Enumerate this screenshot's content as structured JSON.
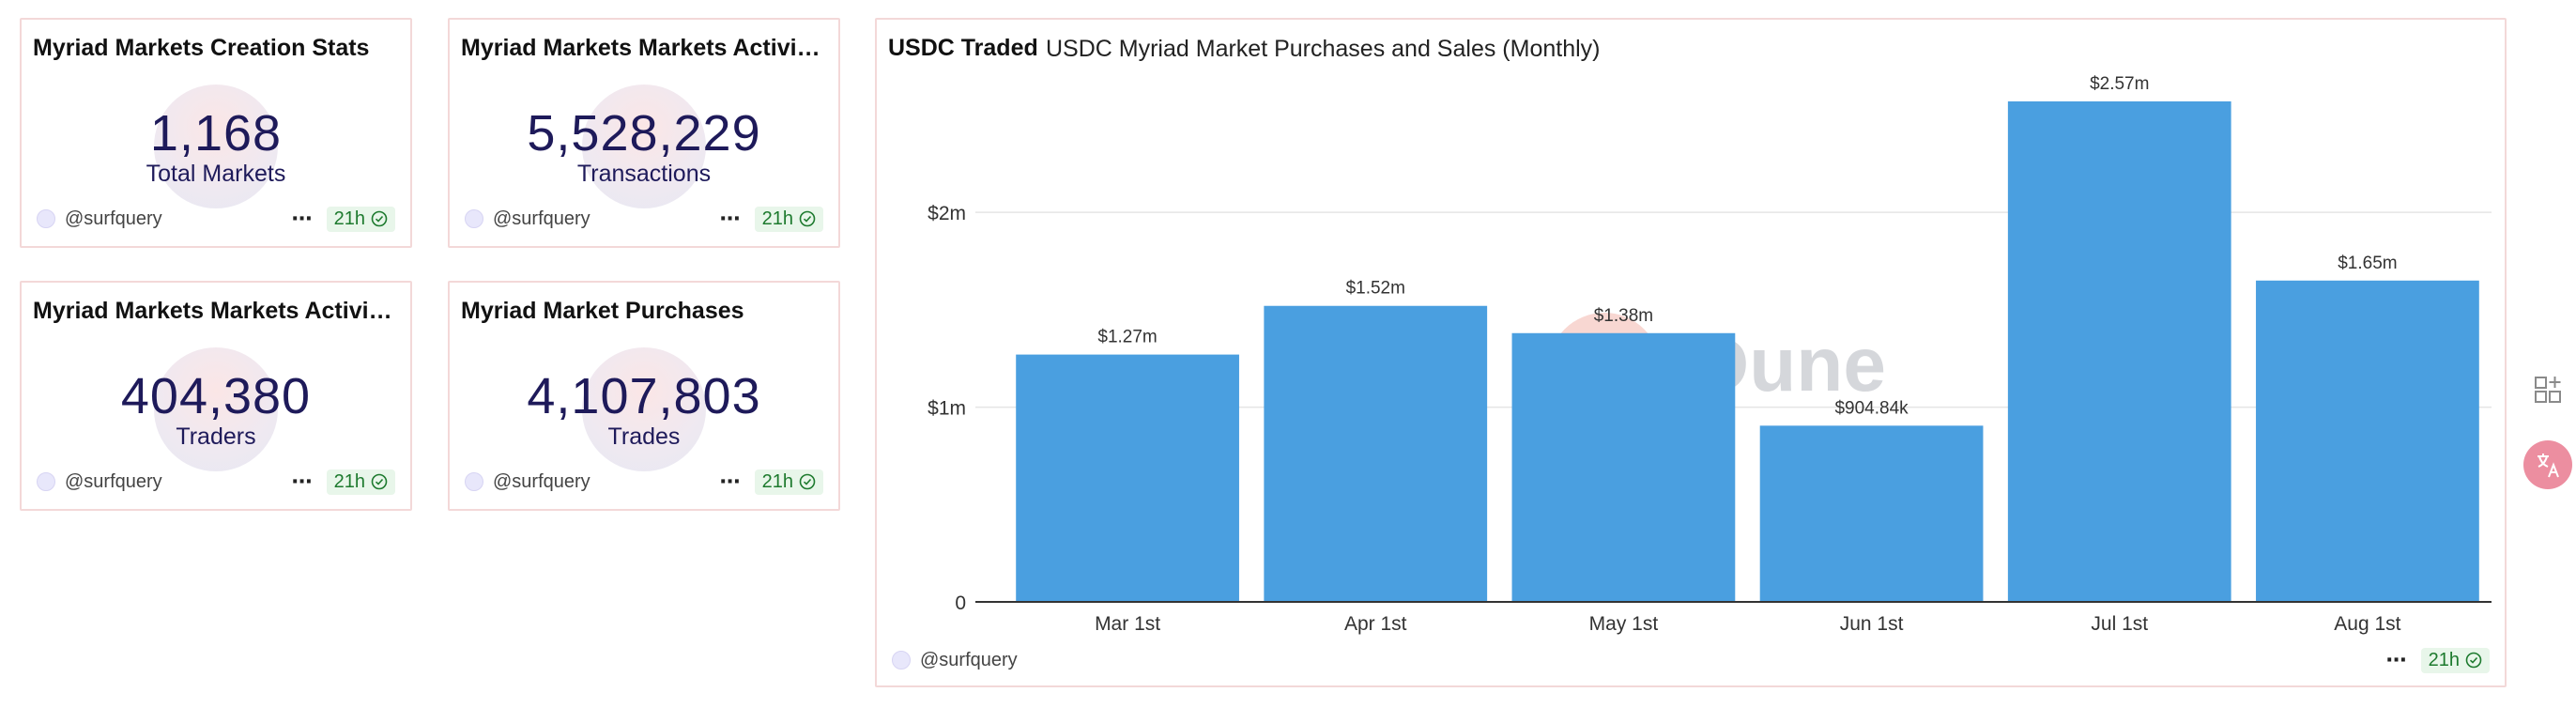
{
  "counters": [
    {
      "title": "Myriad Markets Creation Stats",
      "value": "1,168",
      "label": "Total Markets",
      "author": "@surfquery",
      "freshness": "21h"
    },
    {
      "title": "Myriad Markets Markets Activity...",
      "value": "5,528,229",
      "label": "Transactions",
      "author": "@surfquery",
      "freshness": "21h"
    },
    {
      "title": "Myriad Markets Markets Activity...",
      "value": "404,380",
      "label": "Traders",
      "author": "@surfquery",
      "freshness": "21h"
    },
    {
      "title": "Myriad Market Purchases",
      "value": "4,107,803",
      "label": "Trades",
      "author": "@surfquery",
      "freshness": "21h"
    }
  ],
  "chart_panel": {
    "tab_label": "USDC Traded",
    "title": "USDC Myriad Market Purchases and Sales (Monthly)",
    "author": "@surfquery",
    "freshness": "21h",
    "watermark": "Dune"
  },
  "chart_data": {
    "type": "bar",
    "title": "USDC Myriad Market Purchases and Sales (Monthly)",
    "categories": [
      "Mar 1st",
      "Apr 1st",
      "May 1st",
      "Jun 1st",
      "Jul 1st",
      "Aug 1st"
    ],
    "values": [
      1270000,
      1520000,
      1380000,
      904840,
      2570000,
      1650000
    ],
    "data_labels": [
      "$1.27m",
      "$1.52m",
      "$1.38m",
      "$904.84k",
      "$2.57m",
      "$1.65m"
    ],
    "y_ticks": [
      0,
      1000000,
      2000000
    ],
    "y_tick_labels": [
      "0",
      "$1m",
      "$2m"
    ],
    "ylim": [
      0,
      2700000
    ],
    "grid": true,
    "bar_color": "#4a9fe0"
  },
  "colors": {
    "card_border": "#f3d8d8",
    "counter_text": "#1e1a5a",
    "badge_bg": "#e8f6ea",
    "badge_text": "#1d7a2e",
    "bar": "#4a9fe0"
  },
  "icons": {
    "more": "⋯",
    "add_widget": "add-widget-icon",
    "translate": "translate-icon"
  }
}
